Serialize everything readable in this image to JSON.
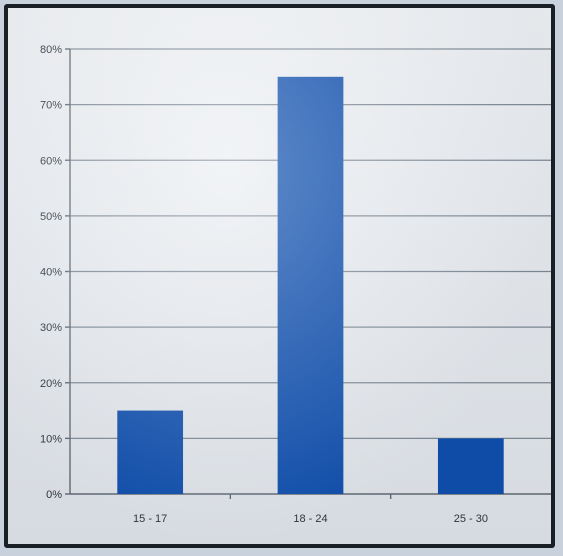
{
  "chart_data": {
    "type": "bar",
    "categories": [
      "15 - 17",
      "18 - 24",
      "25 - 30"
    ],
    "values": [
      15,
      75,
      10
    ],
    "ylim": [
      0,
      80
    ],
    "yticks": [
      0,
      10,
      20,
      30,
      40,
      50,
      60,
      70,
      80
    ],
    "ytick_format": "percent",
    "grid": true,
    "bar_color": "#0f4fae",
    "title": "",
    "xlabel": "",
    "ylabel": ""
  }
}
